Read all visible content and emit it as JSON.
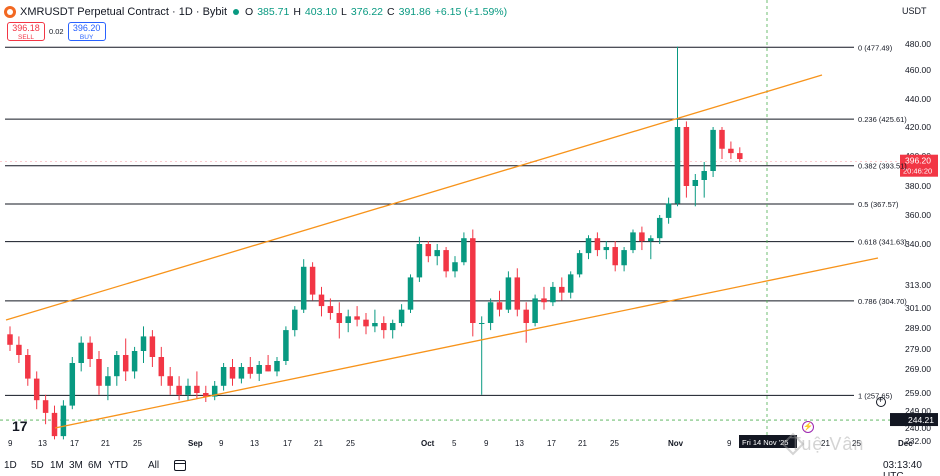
{
  "header": {
    "symbol_title": "XMRUSDT Perpetual Contract · 1D · Bybit",
    "o_key": "O",
    "o_val": "385.71",
    "h_key": "H",
    "h_val": "403.10",
    "l_key": "L",
    "l_val": "376.22",
    "c_key": "C",
    "c_val": "391.86",
    "change": "+6.15 (+1.59%)"
  },
  "trade": {
    "sell_price": "396.18",
    "sell_label": "SELL",
    "spread": "0.02",
    "buy_price": "396.20",
    "buy_label": "BUY"
  },
  "currency": "USDT",
  "price_axis": {
    "labels": [
      "480.00",
      "460.00",
      "440.00",
      "420.00",
      "400.00",
      "380.00",
      "360.00",
      "340.00",
      "313.00",
      "301.00",
      "289.00",
      "279.00",
      "269.00",
      "259.00",
      "249.00",
      "240.00",
      "232.00"
    ],
    "last_price": "396.20",
    "countdown": "20:46:20",
    "crosshair_price": "244.21"
  },
  "time_axis": {
    "labels": [
      "9",
      "13",
      "17",
      "21",
      "25",
      "Sep",
      "9",
      "13",
      "17",
      "21",
      "25",
      "Oct",
      "5",
      "9",
      "13",
      "17",
      "21",
      "25",
      "Nov",
      "9",
      "21",
      "25",
      "Dec"
    ],
    "crosshair_date": "Fri 14 Nov '25"
  },
  "fib_levels": [
    {
      "ratio": "0",
      "price": 477.49,
      "label": "0 (477.49)"
    },
    {
      "ratio": "0.236",
      "price": 425.61,
      "label": "0.236 (425.61)"
    },
    {
      "ratio": "0.382",
      "price": 393.51,
      "label": "0.382 (393.51)"
    },
    {
      "ratio": "0.5",
      "price": 367.57,
      "label": "0.5 (367.57)"
    },
    {
      "ratio": "0.618",
      "price": 341.63,
      "label": "0.618 (341.63)"
    },
    {
      "ratio": "0.786",
      "price": 304.7,
      "label": "0.786 (304.70)"
    },
    {
      "ratio": "1",
      "price": 257.65,
      "label": "1 (257.65)"
    }
  ],
  "timeframes": [
    "1D",
    "5D",
    "1M",
    "3M",
    "6M",
    "YTD",
    "All"
  ],
  "clock": "03:13:40 UTC",
  "watermark": "Tuệ Vân",
  "tv_logo": "17",
  "colors": {
    "up": "#089981",
    "down": "#f23645",
    "channel": "#f7931a",
    "fib_line": "#131722",
    "sell": "#f23645",
    "buy": "#2962ff"
  },
  "chart_data": {
    "type": "candlestick",
    "title": "XMRUSDT Perpetual Contract · 1D · Bybit",
    "currency": "USDT",
    "price_range": [
      232,
      495
    ],
    "candles": [
      {
        "o": 286,
        "h": 290,
        "l": 278,
        "c": 281
      },
      {
        "o": 281,
        "h": 285,
        "l": 272,
        "c": 276
      },
      {
        "o": 276,
        "h": 279,
        "l": 262,
        "c": 265
      },
      {
        "o": 265,
        "h": 268,
        "l": 250,
        "c": 255
      },
      {
        "o": 255,
        "h": 258,
        "l": 242,
        "c": 248
      },
      {
        "o": 248,
        "h": 252,
        "l": 233,
        "c": 235
      },
      {
        "o": 235,
        "h": 255,
        "l": 233,
        "c": 252
      },
      {
        "o": 252,
        "h": 275,
        "l": 250,
        "c": 272
      },
      {
        "o": 272,
        "h": 285,
        "l": 268,
        "c": 282
      },
      {
        "o": 282,
        "h": 285,
        "l": 270,
        "c": 274
      },
      {
        "o": 274,
        "h": 278,
        "l": 258,
        "c": 262
      },
      {
        "o": 262,
        "h": 270,
        "l": 255,
        "c": 266
      },
      {
        "o": 266,
        "h": 278,
        "l": 262,
        "c": 276
      },
      {
        "o": 276,
        "h": 284,
        "l": 264,
        "c": 268
      },
      {
        "o": 268,
        "h": 280,
        "l": 265,
        "c": 278
      },
      {
        "o": 278,
        "h": 290,
        "l": 272,
        "c": 285
      },
      {
        "o": 285,
        "h": 288,
        "l": 270,
        "c": 275
      },
      {
        "o": 275,
        "h": 280,
        "l": 262,
        "c": 266
      },
      {
        "o": 266,
        "h": 270,
        "l": 258,
        "c": 262
      },
      {
        "o": 262,
        "h": 266,
        "l": 255,
        "c": 258
      },
      {
        "o": 258,
        "h": 265,
        "l": 255,
        "c": 262
      },
      {
        "o": 262,
        "h": 268,
        "l": 256,
        "c": 259
      },
      {
        "o": 259,
        "h": 262,
        "l": 254,
        "c": 257
      },
      {
        "o": 257,
        "h": 264,
        "l": 255,
        "c": 262
      },
      {
        "o": 262,
        "h": 272,
        "l": 260,
        "c": 270
      },
      {
        "o": 270,
        "h": 274,
        "l": 262,
        "c": 265
      },
      {
        "o": 265,
        "h": 272,
        "l": 263,
        "c": 270
      },
      {
        "o": 270,
        "h": 275,
        "l": 265,
        "c": 267
      },
      {
        "o": 267,
        "h": 273,
        "l": 264,
        "c": 271
      },
      {
        "o": 271,
        "h": 276,
        "l": 268,
        "c": 268
      },
      {
        "o": 268,
        "h": 275,
        "l": 266,
        "c": 273
      },
      {
        "o": 273,
        "h": 290,
        "l": 271,
        "c": 288
      },
      {
        "o": 288,
        "h": 302,
        "l": 285,
        "c": 300
      },
      {
        "o": 300,
        "h": 330,
        "l": 298,
        "c": 325
      },
      {
        "o": 325,
        "h": 328,
        "l": 305,
        "c": 308
      },
      {
        "o": 308,
        "h": 312,
        "l": 296,
        "c": 302
      },
      {
        "o": 302,
        "h": 306,
        "l": 294,
        "c": 298
      },
      {
        "o": 298,
        "h": 304,
        "l": 284,
        "c": 292
      },
      {
        "o": 292,
        "h": 300,
        "l": 287,
        "c": 296
      },
      {
        "o": 296,
        "h": 302,
        "l": 290,
        "c": 294
      },
      {
        "o": 294,
        "h": 298,
        "l": 286,
        "c": 290
      },
      {
        "o": 290,
        "h": 300,
        "l": 287,
        "c": 292
      },
      {
        "o": 292,
        "h": 296,
        "l": 284,
        "c": 288
      },
      {
        "o": 288,
        "h": 294,
        "l": 284,
        "c": 292
      },
      {
        "o": 292,
        "h": 303,
        "l": 290,
        "c": 300
      },
      {
        "o": 300,
        "h": 320,
        "l": 298,
        "c": 318
      },
      {
        "o": 318,
        "h": 345,
        "l": 315,
        "c": 340
      },
      {
        "o": 340,
        "h": 342,
        "l": 328,
        "c": 332
      },
      {
        "o": 332,
        "h": 340,
        "l": 326,
        "c": 336
      },
      {
        "o": 336,
        "h": 338,
        "l": 318,
        "c": 322
      },
      {
        "o": 322,
        "h": 332,
        "l": 318,
        "c": 328
      },
      {
        "o": 328,
        "h": 348,
        "l": 326,
        "c": 344
      },
      {
        "o": 344,
        "h": 350,
        "l": 285,
        "c": 292
      },
      {
        "o": 292,
        "h": 296,
        "l": 258,
        "c": 292
      },
      {
        "o": 292,
        "h": 306,
        "l": 288,
        "c": 304
      },
      {
        "o": 304,
        "h": 310,
        "l": 296,
        "c": 300
      },
      {
        "o": 300,
        "h": 322,
        "l": 298,
        "c": 318
      },
      {
        "o": 318,
        "h": 324,
        "l": 296,
        "c": 300
      },
      {
        "o": 300,
        "h": 304,
        "l": 282,
        "c": 292
      },
      {
        "o": 292,
        "h": 308,
        "l": 290,
        "c": 306
      },
      {
        "o": 306,
        "h": 312,
        "l": 300,
        "c": 304
      },
      {
        "o": 304,
        "h": 315,
        "l": 302,
        "c": 312
      },
      {
        "o": 312,
        "h": 318,
        "l": 305,
        "c": 309
      },
      {
        "o": 309,
        "h": 322,
        "l": 306,
        "c": 320
      },
      {
        "o": 320,
        "h": 336,
        "l": 318,
        "c": 334
      },
      {
        "o": 334,
        "h": 346,
        "l": 330,
        "c": 344
      },
      {
        "o": 344,
        "h": 348,
        "l": 332,
        "c": 336
      },
      {
        "o": 336,
        "h": 342,
        "l": 330,
        "c": 338
      },
      {
        "o": 338,
        "h": 342,
        "l": 322,
        "c": 326
      },
      {
        "o": 326,
        "h": 338,
        "l": 322,
        "c": 336
      },
      {
        "o": 336,
        "h": 350,
        "l": 334,
        "c": 348
      },
      {
        "o": 348,
        "h": 352,
        "l": 336,
        "c": 342
      },
      {
        "o": 342,
        "h": 346,
        "l": 330,
        "c": 344
      },
      {
        "o": 344,
        "h": 360,
        "l": 340,
        "c": 358
      },
      {
        "o": 358,
        "h": 372,
        "l": 354,
        "c": 368
      },
      {
        "o": 368,
        "h": 478,
        "l": 366,
        "c": 420
      },
      {
        "o": 420,
        "h": 424,
        "l": 372,
        "c": 380
      },
      {
        "o": 380,
        "h": 388,
        "l": 366,
        "c": 384
      },
      {
        "o": 384,
        "h": 396,
        "l": 372,
        "c": 390
      },
      {
        "o": 390,
        "h": 420,
        "l": 386,
        "c": 418
      },
      {
        "o": 418,
        "h": 420,
        "l": 398,
        "c": 405
      },
      {
        "o": 405,
        "h": 410,
        "l": 398,
        "c": 402
      },
      {
        "o": 402,
        "h": 406,
        "l": 396,
        "c": 398
      }
    ],
    "candle_x_start": 0,
    "fib_retracement": [
      {
        "ratio": 0,
        "price": 477.49
      },
      {
        "ratio": 0.236,
        "price": 425.61
      },
      {
        "ratio": 0.382,
        "price": 393.51
      },
      {
        "ratio": 0.5,
        "price": 367.57
      },
      {
        "ratio": 0.618,
        "price": 341.63
      },
      {
        "ratio": 0.786,
        "price": 304.7
      },
      {
        "ratio": 1,
        "price": 257.65
      }
    ],
    "last_price": 396.2,
    "crosshair_price": 244.21
  }
}
